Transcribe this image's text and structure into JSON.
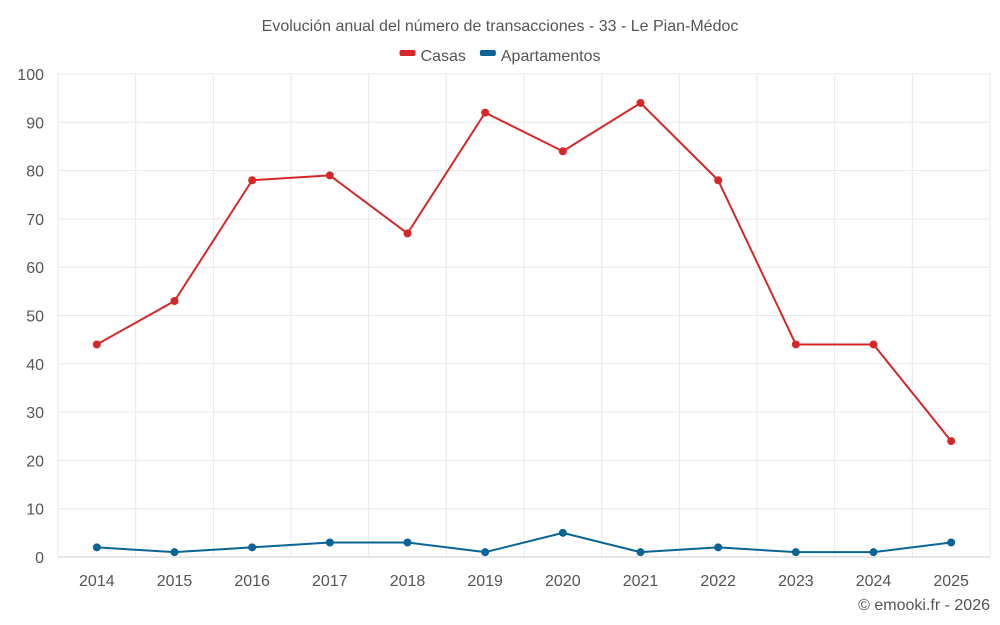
{
  "chart_data": {
    "type": "line",
    "title": "Evolución anual del número de transacciones - 33 - Le Pian-Médoc",
    "categories": [
      "2014",
      "2015",
      "2016",
      "2017",
      "2018",
      "2019",
      "2020",
      "2021",
      "2022",
      "2023",
      "2024",
      "2025"
    ],
    "series": [
      {
        "name": "Casas",
        "color": "#d62728",
        "values": [
          44,
          53,
          78,
          79,
          67,
          92,
          84,
          94,
          78,
          44,
          44,
          24
        ]
      },
      {
        "name": "Apartamentos",
        "color": "#0a6596",
        "values": [
          2,
          1,
          2,
          3,
          3,
          1,
          5,
          1,
          2,
          1,
          1,
          3
        ]
      }
    ],
    "ylim": [
      0,
      100
    ],
    "yticks": [
      0,
      10,
      20,
      30,
      40,
      50,
      60,
      70,
      80,
      90,
      100
    ],
    "grid": true,
    "legend_position": "top-center",
    "xlabel": "",
    "ylabel": ""
  },
  "credit": "© emooki.fr - 2026"
}
